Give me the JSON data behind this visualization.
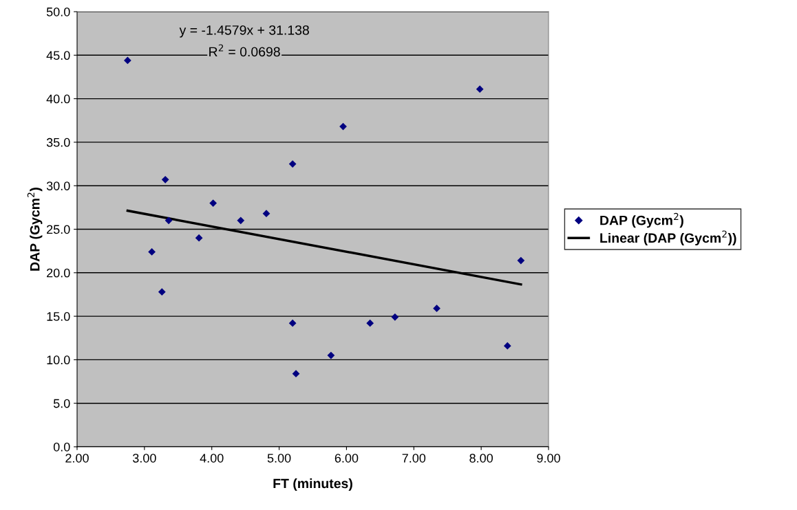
{
  "chart_data": {
    "type": "scatter",
    "xlabel": "FT (minutes)",
    "ylabel": "DAP (Gycm$^{2}$)",
    "series": [
      {
        "name": "DAP (Gycm$^{2}$)",
        "color": "#000080",
        "marker": "diamond",
        "x": [
          2.75,
          3.31,
          4.02,
          5.2,
          3.36,
          4.43,
          4.81,
          3.81,
          3.11,
          3.26,
          5.2,
          5.25,
          5.95,
          8.59,
          7.34,
          6.72,
          6.35,
          5.77,
          8.39,
          7.98
        ],
        "values": [
          44.4,
          30.7,
          28.0,
          32.5,
          26.0,
          26.0,
          26.8,
          24.0,
          22.4,
          17.8,
          14.2,
          8.4,
          36.8,
          21.4,
          15.9,
          14.9,
          14.2,
          10.5,
          11.6,
          41.1
        ]
      },
      {
        "name": "Linear (DAP (Gycm$^{2}$))",
        "type": "line",
        "color": "#000000",
        "line_style": "solid",
        "marker": "none",
        "x": [
          2.75,
          8.59
        ],
        "values": [
          27.13,
          18.66
        ]
      }
    ],
    "annotations": [
      "y = -1.4579x + 31.138",
      "R$^{2}$ = 0.0698"
    ],
    "xlim": [
      2.0,
      9.0
    ],
    "xticks": [
      {
        "value": 2,
        "label": "2.00"
      },
      {
        "value": 3,
        "label": "3.00"
      },
      {
        "value": 4,
        "label": "4.00"
      },
      {
        "value": 5,
        "label": "5.00"
      },
      {
        "value": 6,
        "label": "6.00"
      },
      {
        "value": 7,
        "label": "7.00"
      },
      {
        "value": 8,
        "label": "8.00"
      },
      {
        "value": 9,
        "label": "9.00"
      }
    ],
    "ylim": [
      0,
      50
    ],
    "yticks": [
      {
        "value": 0,
        "label": "0.0"
      },
      {
        "value": 5,
        "label": "5.0"
      },
      {
        "value": 10,
        "label": "10.0"
      },
      {
        "value": 15,
        "label": "15.0"
      },
      {
        "value": 20,
        "label": "20.0"
      },
      {
        "value": 25,
        "label": "25.0"
      },
      {
        "value": 30,
        "label": "30.0"
      },
      {
        "value": 35,
        "label": "35.0"
      },
      {
        "value": 40,
        "label": "40.0"
      },
      {
        "value": 45,
        "label": "45.0"
      },
      {
        "value": 50,
        "label": "50.0"
      }
    ],
    "grid": "y",
    "legend": "right"
  }
}
